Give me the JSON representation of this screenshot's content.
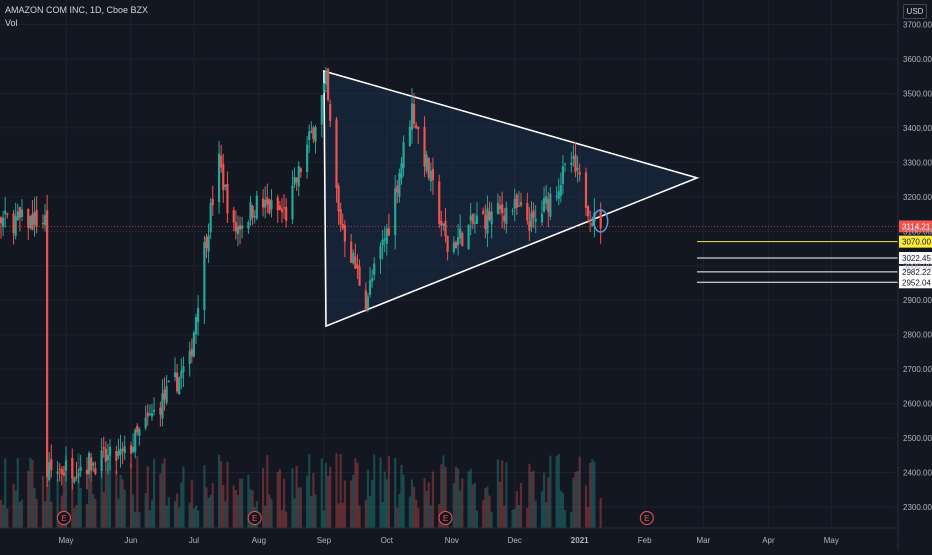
{
  "header": {
    "title": "AMAZON COM INC, 1D, Cboe BZX",
    "volume_label": "Vol",
    "currency_button": "USD"
  },
  "colors": {
    "background": "#131722",
    "up": "#26a69a",
    "down": "#ef5350",
    "drawing": "#ffffff",
    "triangle_fill": "#1e3a5f",
    "last_price": "#ef5350",
    "highlight": "#ffeb3b",
    "grid": "#1e222d",
    "axis_text": "#b2b5be"
  },
  "chart_data": {
    "type": "candlestick",
    "symbol": "AMAZON COM INC",
    "interval": "1D",
    "exchange": "Cboe BZX",
    "grid": true,
    "y_axis": {
      "position": "right",
      "ylim": [
        2250,
        3780
      ],
      "ticks": [
        "3700.00",
        "3600.00",
        "3500.00",
        "3400.00",
        "3300.00",
        "3200.00",
        "3100.00",
        "3000.00",
        "2900.00",
        "2800.00",
        "2700.00",
        "2600.00",
        "2500.00",
        "2400.00",
        "2300.00"
      ]
    },
    "x_axis": {
      "ticks": [
        "May",
        "Jun",
        "Jul",
        "Aug",
        "Sep",
        "Oct",
        "Nov",
        "Dec",
        "2021",
        "Feb",
        "Mar",
        "Apr",
        "May"
      ]
    },
    "anchor_points": [
      [
        "2020-04-22",
        2400
      ],
      [
        "2020-05-29",
        2450
      ],
      [
        "2020-06-15",
        2600
      ],
      [
        "2020-06-29",
        2720
      ],
      [
        "2020-07-06",
        3050
      ],
      [
        "2020-07-13",
        3300
      ],
      [
        "2020-07-20",
        3100
      ],
      [
        "2020-07-31",
        3180
      ],
      [
        "2020-08-14",
        3150
      ],
      [
        "2020-08-27",
        3400
      ],
      [
        "2020-09-02",
        3530
      ],
      [
        "2020-09-08",
        3150
      ],
      [
        "2020-09-21",
        2900
      ],
      [
        "2020-10-02",
        3120
      ],
      [
        "2020-10-13",
        3460
      ],
      [
        "2020-10-30",
        3050
      ],
      [
        "2020-11-13",
        3130
      ],
      [
        "2020-11-30",
        3170
      ],
      [
        "2020-12-10",
        3120
      ],
      [
        "2020-12-28",
        3300
      ],
      [
        "2021-01-08",
        3130
      ]
    ],
    "last_price": {
      "value": 3114.21,
      "label": "3114.21"
    },
    "horizontal_lines": [
      {
        "value": 3070.0,
        "label": "3070.00",
        "highlight": true
      },
      {
        "value": 3022.45,
        "label": "3022.45"
      },
      {
        "value": 2982.22,
        "label": "2982.22"
      },
      {
        "value": 2952.04,
        "label": "2952.04"
      }
    ],
    "triangle": {
      "points": [
        [
          "2020-09-01",
          3565
        ],
        [
          "2020-09-02",
          2825
        ],
        [
          "2021-02-26",
          3255
        ]
      ]
    },
    "annotations": [
      {
        "type": "ellipse",
        "date": "2021-01-11",
        "value": 3130
      },
      {
        "type": "earnings",
        "label": "E",
        "date": "2020-04-30"
      },
      {
        "type": "earnings",
        "label": "E",
        "date": "2020-07-30"
      },
      {
        "type": "earnings",
        "label": "E",
        "date": "2020-10-29"
      },
      {
        "type": "earnings",
        "label": "E",
        "date": "2021-02-02"
      }
    ]
  }
}
